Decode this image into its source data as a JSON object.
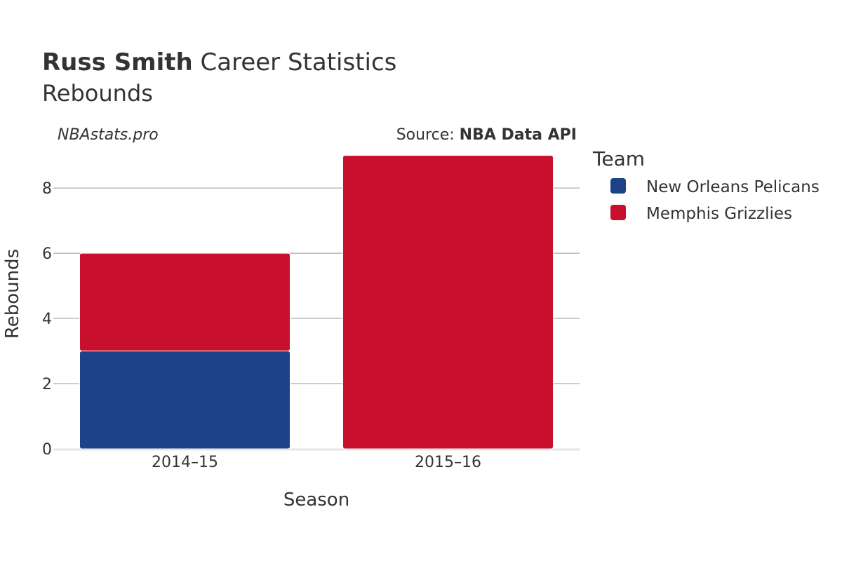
{
  "header": {
    "title_bold": "Russ Smith",
    "title_rest": " Career Statistics",
    "subtitle": "Rebounds"
  },
  "watermark": "NBAstats.pro",
  "source": {
    "prefix": "Source: ",
    "name": "NBA Data API"
  },
  "legend": {
    "title": "Team",
    "items": [
      {
        "label": "New Orleans Pelicans",
        "color": "#1d428a"
      },
      {
        "label": "Memphis Grizzlies",
        "color": "#c8102e"
      }
    ]
  },
  "chart_data": {
    "type": "bar",
    "stacked": true,
    "categories": [
      "2014–15",
      "2015–16"
    ],
    "series": [
      {
        "name": "New Orleans Pelicans",
        "color": "#1d428a",
        "values": [
          3,
          0
        ]
      },
      {
        "name": "Memphis Grizzlies",
        "color": "#c8102e",
        "values": [
          3,
          9
        ]
      }
    ],
    "xlabel": "Season",
    "ylabel": "Rebounds",
    "ylim": [
      0,
      9.4
    ],
    "yticks": [
      0,
      2,
      4,
      6,
      8
    ],
    "grid": true,
    "legend_position": "right"
  }
}
